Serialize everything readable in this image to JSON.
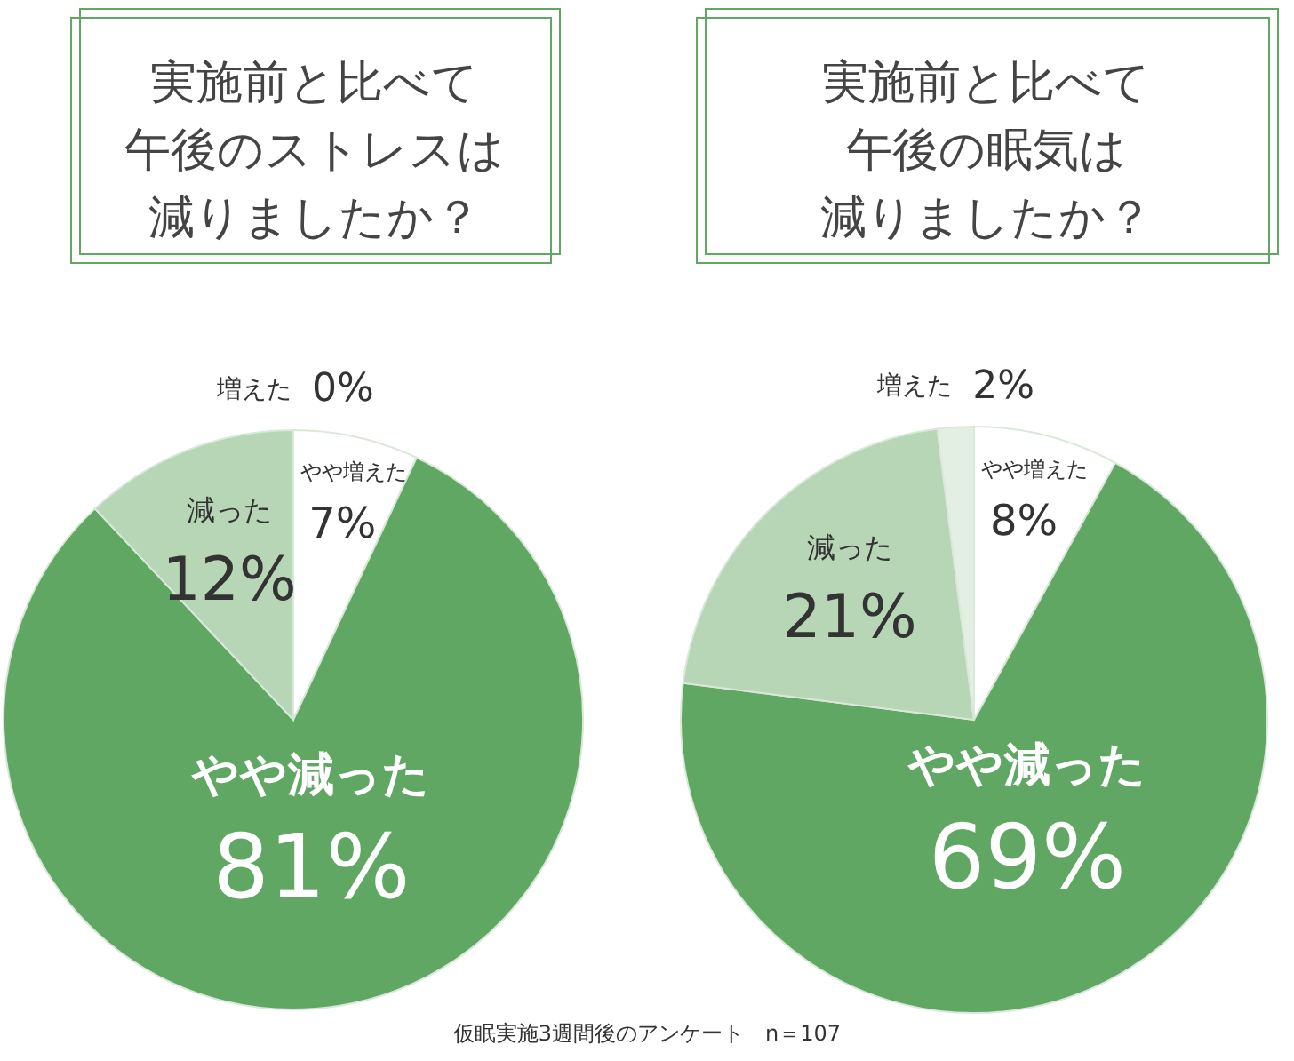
{
  "chart_data": [
    {
      "type": "pie",
      "title": "実施前と比べて午後のストレスは減りましたか？",
      "categories": [
        "やや増えた",
        "やや減った",
        "減った",
        "増えた"
      ],
      "values": [
        7,
        81,
        12,
        0
      ],
      "value_labels": [
        "7%",
        "81%",
        "12%",
        "0%"
      ],
      "colors": [
        "#ffffff",
        "#5fa763",
        "#b6d6b6",
        "#e3efe3"
      ]
    },
    {
      "type": "pie",
      "title": "実施前と比べて午後の眠気は減りましたか？",
      "categories": [
        "やや増えた",
        "やや減った",
        "減った",
        "増えた"
      ],
      "values": [
        8,
        69,
        21,
        2
      ],
      "value_labels": [
        "8%",
        "69%",
        "21%",
        "2%"
      ],
      "colors": [
        "#ffffff",
        "#5fa763",
        "#b6d6b6",
        "#e3efe3"
      ],
      "annotations": [
        "仮眠実施3週間後のアンケート　n＝107"
      ]
    }
  ]
}
